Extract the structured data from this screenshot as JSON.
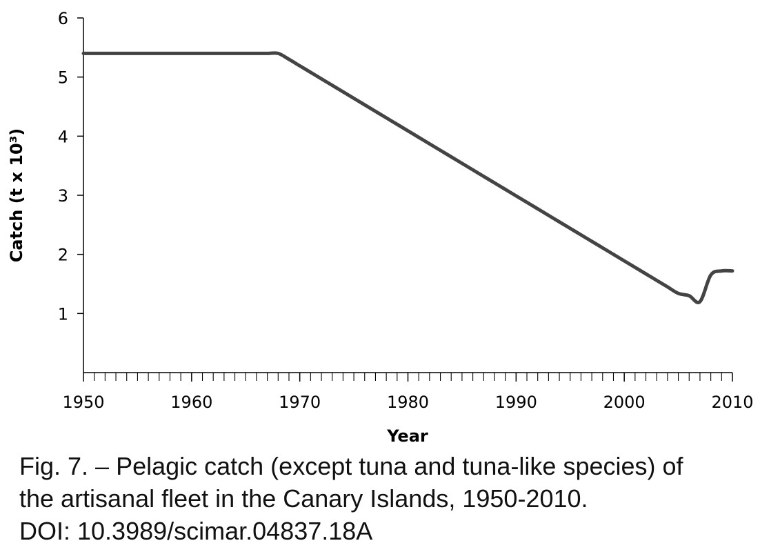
{
  "chart_data": {
    "type": "line",
    "title": "",
    "xlabel": "Year",
    "ylabel": "Catch (t x 10³)",
    "xlim": [
      1950,
      2010
    ],
    "ylim": [
      0,
      6
    ],
    "x_major_ticks": [
      1950,
      1960,
      1970,
      1980,
      1990,
      2000,
      2010
    ],
    "x_tick_labels": [
      "1950",
      "1960",
      "1970",
      "1980",
      "1990",
      "2000",
      "2010"
    ],
    "y_ticks": [
      1,
      2,
      3,
      4,
      5,
      6
    ],
    "y_tick_labels": [
      "1",
      "2",
      "3",
      "4",
      "5",
      "6"
    ],
    "grid": false,
    "legend": "none",
    "series": [
      {
        "color": "#444444",
        "x": [
          1950,
          1951,
          1952,
          1953,
          1954,
          1955,
          1956,
          1957,
          1958,
          1959,
          1960,
          1961,
          1962,
          1963,
          1964,
          1965,
          1966,
          1967,
          1968,
          1969,
          1970,
          1971,
          1972,
          1973,
          1974,
          1975,
          1976,
          1977,
          1978,
          1979,
          1980,
          1981,
          1982,
          1983,
          1984,
          1985,
          1986,
          1987,
          1988,
          1989,
          1990,
          1991,
          1992,
          1993,
          1994,
          1995,
          1996,
          1997,
          1998,
          1999,
          2000,
          2001,
          2002,
          2003,
          2004,
          2005,
          2006,
          2007,
          2008,
          2009,
          2010
        ],
        "values": [
          5.4,
          5.4,
          5.4,
          5.4,
          5.4,
          5.4,
          5.4,
          5.4,
          5.4,
          5.4,
          5.4,
          5.4,
          5.4,
          5.4,
          5.4,
          5.4,
          5.4,
          5.4,
          5.4,
          5.3,
          5.19,
          5.08,
          4.97,
          4.86,
          4.75,
          4.64,
          4.53,
          4.42,
          4.31,
          4.2,
          4.09,
          3.98,
          3.87,
          3.76,
          3.65,
          3.54,
          3.43,
          3.32,
          3.21,
          3.1,
          2.99,
          2.88,
          2.77,
          2.66,
          2.55,
          2.44,
          2.33,
          2.22,
          2.11,
          2.0,
          1.89,
          1.78,
          1.67,
          1.56,
          1.45,
          1.34,
          1.3,
          1.2,
          1.65,
          1.72,
          1.72
        ]
      }
    ]
  },
  "caption": {
    "line1": "Fig. 7. – Pelagic catch (except tuna and tuna-like species) of",
    "line2": "the artisanal fleet in the Canary Islands, 1950-2010.",
    "line3": "DOI: 10.3989/scimar.04837.18A"
  }
}
